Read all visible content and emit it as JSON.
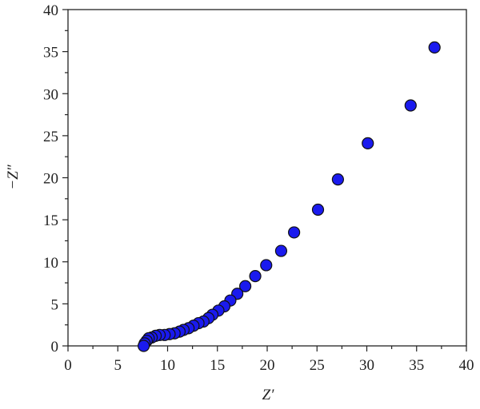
{
  "chart_data": {
    "type": "scatter",
    "x_label": "Z′",
    "y_label": "−Z″",
    "series": [
      {
        "color": "#1a1aee",
        "x": [
          36.8,
          34.4,
          30.1,
          27.1,
          25.1,
          22.7,
          21.4,
          19.9,
          18.8,
          17.8,
          17.0,
          16.3,
          15.7,
          15.1,
          14.5,
          14.1,
          13.6,
          13.1,
          12.6,
          12.1,
          11.6,
          11.2,
          10.7,
          10.2,
          9.7,
          9.2,
          8.8,
          8.4,
          8.1,
          7.9,
          7.7,
          7.6
        ],
        "values": [
          35.5,
          28.6,
          24.1,
          19.8,
          16.2,
          13.5,
          11.3,
          9.6,
          8.3,
          7.1,
          6.2,
          5.4,
          4.7,
          4.2,
          3.7,
          3.3,
          2.9,
          2.7,
          2.4,
          2.1,
          1.9,
          1.7,
          1.5,
          1.4,
          1.3,
          1.3,
          1.2,
          1.0,
          0.9,
          0.6,
          0.3,
          0.0
        ]
      }
    ],
    "xlim": [
      0,
      40
    ],
    "ylim": [
      0,
      40
    ],
    "xticks": [
      0,
      5,
      10,
      15,
      20,
      25,
      30,
      35,
      40
    ],
    "yticks": [
      0,
      5,
      10,
      15,
      20,
      25,
      30,
      35,
      40
    ]
  }
}
